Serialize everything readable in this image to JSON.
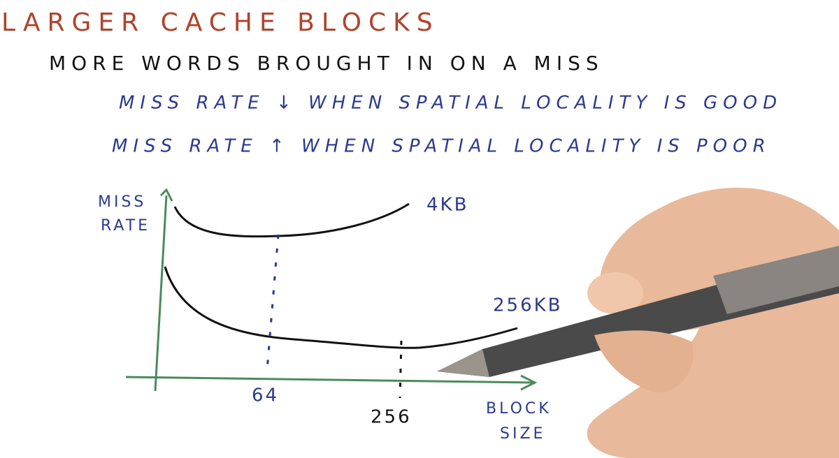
{
  "header": {
    "title": "LARGER CACHE BLOCKS"
  },
  "bullets": [
    {
      "text": "MORE WORDS BROUGHT IN ON A MISS",
      "sub": [
        "MISS RATE ↓ WHEN SPATIAL LOCALITY IS GOOD",
        "MISS RATE ↑ WHEN SPATIAL LOCALITY IS POOR"
      ]
    }
  ],
  "graph": {
    "y_label": [
      "MISS",
      "RATE"
    ],
    "curves": [
      {
        "label": "4KB"
      },
      {
        "label": "256KB"
      }
    ],
    "x_ticks": [
      "64",
      "256"
    ],
    "x_label": [
      "BLOCK",
      "SIZE"
    ]
  }
}
